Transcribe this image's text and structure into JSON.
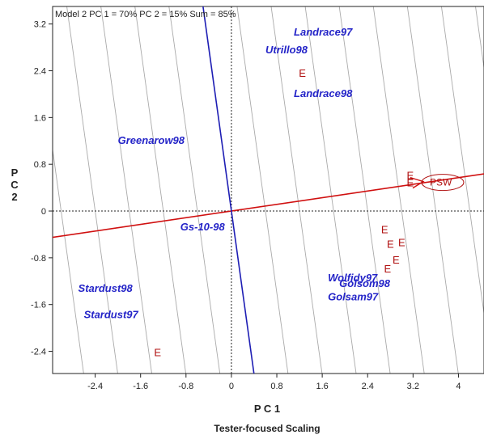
{
  "chart_data": {
    "type": "scatter",
    "title": "Model 2 PC 1 = 70% PC 2 = 15% Sum = 85%",
    "xlabel": "P C 1",
    "ylabel": "P C 2",
    "footer": "Tester-focused Scaling",
    "xlim": [
      -3.15,
      4.45
    ],
    "ylim": [
      -2.78,
      3.5
    ],
    "xticks": [
      -2.4,
      -1.6,
      -0.8,
      0,
      0.8,
      1.6,
      2.4,
      3.2,
      4
    ],
    "xtick_labels": [
      "-2.4",
      "-1.6",
      "-0.8",
      "0",
      "0.8",
      "1.6",
      "2.4",
      "3.2",
      "4"
    ],
    "yticks": [
      3.2,
      2.4,
      1.6,
      0.8,
      0,
      -0.8,
      -1.6,
      -2.4
    ],
    "ytick_labels": [
      "3.2",
      "2.4",
      "1.6",
      "0.8",
      "0",
      "-0.8",
      "-1.6",
      "-2.4"
    ],
    "genotypes": [
      {
        "label": "Landrace97",
        "x": 1.1,
        "y": 3.0
      },
      {
        "label": "Utrillo98",
        "x": 0.6,
        "y": 2.7
      },
      {
        "label": "Landrace98",
        "x": 1.1,
        "y": 1.95
      },
      {
        "label": "Greenarow98",
        "x": -2.0,
        "y": 1.15
      },
      {
        "label": "Gs-10-98",
        "x": -0.9,
        "y": -0.33
      },
      {
        "label": "Stardust98",
        "x": -2.7,
        "y": -1.38
      },
      {
        "label": "Stardust97",
        "x": -2.6,
        "y": -1.83
      },
      {
        "label": "Wolfidy97",
        "x": 1.7,
        "y": -1.2
      },
      {
        "label": "Golsom98",
        "x": 1.9,
        "y": -1.3
      },
      {
        "label": "Golsam97",
        "x": 1.7,
        "y": -1.53
      }
    ],
    "environments": [
      {
        "label": "E",
        "x": 1.25,
        "y": 2.3
      },
      {
        "label": "E",
        "x": 3.15,
        "y": 0.55
      },
      {
        "label": "E",
        "x": 3.15,
        "y": 0.42
      },
      {
        "label": "E",
        "x": 2.7,
        "y": -0.38
      },
      {
        "label": "E",
        "x": 2.8,
        "y": -0.63
      },
      {
        "label": "E",
        "x": 3.0,
        "y": -0.6
      },
      {
        "label": "E",
        "x": 2.9,
        "y": -0.9
      },
      {
        "label": "E",
        "x": 2.75,
        "y": -1.05
      },
      {
        "label": "E",
        "x": -1.3,
        "y": -2.48
      }
    ],
    "average_environment": {
      "label": "PSW",
      "x": 3.38,
      "y": 0.49
    },
    "aea_axis": {
      "slope": 0.1428
    },
    "ordinate_axis": {
      "slope": -7.0
    }
  },
  "colors": {
    "genotype": "#2424c8",
    "environment": "#b01010",
    "aea_line": "#d01010",
    "ordinate_line": "#1e1eb4",
    "concentric": "#aaaaaa",
    "axis": "#222222"
  }
}
